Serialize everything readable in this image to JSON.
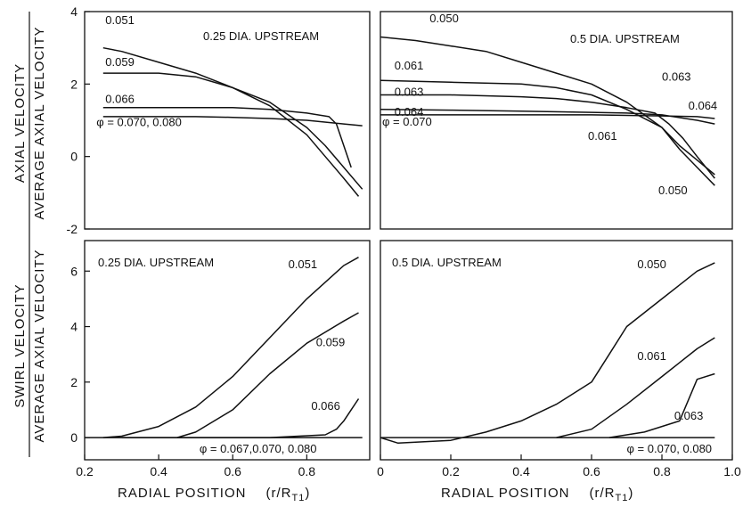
{
  "ylabel": {
    "numerator_top": "AXIAL  VELOCITY",
    "numerator_bottom": "SWIRL  VELOCITY",
    "denominator": "AVERAGE  AXIAL  VELOCITY"
  },
  "xlabel": {
    "text": "RADIAL    POSITION",
    "var": "(r/R",
    "sub": "T1",
    "close": ")"
  },
  "chart_data": [
    {
      "id": "axial-025",
      "type": "line",
      "title": "0.25 DIA. UPSTREAM",
      "xlim": [
        0.2,
        0.97
      ],
      "ylim": [
        -2,
        4
      ],
      "xticks": [],
      "yticks": [
        -2,
        0,
        2,
        4
      ],
      "phi_label": "φ = 0.070, 0.080",
      "series": [
        {
          "name": "0.051",
          "x": [
            0.25,
            0.3,
            0.4,
            0.5,
            0.6,
            0.7,
            0.8,
            0.85,
            0.9,
            0.94
          ],
          "y": [
            3.0,
            2.9,
            2.6,
            2.3,
            1.9,
            1.4,
            0.6,
            0.0,
            -0.6,
            -1.1
          ]
        },
        {
          "name": "0.059",
          "x": [
            0.25,
            0.3,
            0.4,
            0.5,
            0.6,
            0.7,
            0.8,
            0.85,
            0.9,
            0.95
          ],
          "y": [
            2.3,
            2.3,
            2.3,
            2.2,
            1.9,
            1.5,
            0.8,
            0.3,
            -0.3,
            -0.9
          ]
        },
        {
          "name": "0.066",
          "x": [
            0.25,
            0.4,
            0.5,
            0.6,
            0.7,
            0.8,
            0.86,
            0.88,
            0.9,
            0.92
          ],
          "y": [
            1.35,
            1.35,
            1.35,
            1.35,
            1.3,
            1.2,
            1.1,
            0.9,
            0.3,
            -0.3
          ]
        },
        {
          "name": "",
          "x": [
            0.25,
            0.4,
            0.5,
            0.6,
            0.7,
            0.8,
            0.9,
            0.95
          ],
          "y": [
            1.1,
            1.1,
            1.1,
            1.08,
            1.05,
            1.0,
            0.9,
            0.85
          ]
        }
      ],
      "labels": [
        {
          "text": "0.051",
          "x": 0.256,
          "y": 3.66
        },
        {
          "text": "0.059",
          "x": 0.256,
          "y": 2.5
        },
        {
          "text": "0.066",
          "x": 0.256,
          "y": 1.48
        },
        {
          "text": "φ = 0.070, 0.080",
          "x": 0.232,
          "y": 0.84
        }
      ]
    },
    {
      "id": "axial-05",
      "type": "line",
      "title": "0.5 DIA. UPSTREAM",
      "xlim": [
        0,
        1.0
      ],
      "ylim": [
        -2,
        4
      ],
      "xticks": [],
      "yticks": [],
      "phi_label": "φ = 0.070",
      "series": [
        {
          "name": "0.050",
          "x": [
            0,
            0.1,
            0.2,
            0.3,
            0.4,
            0.5,
            0.6,
            0.7,
            0.8,
            0.85,
            0.9,
            0.95
          ],
          "y": [
            3.3,
            3.2,
            3.05,
            2.9,
            2.6,
            2.3,
            2.0,
            1.5,
            0.8,
            0.2,
            -0.3,
            -0.8
          ]
        },
        {
          "name": "0.061",
          "x": [
            0,
            0.2,
            0.4,
            0.5,
            0.6,
            0.7,
            0.8,
            0.85,
            0.9,
            0.95
          ],
          "y": [
            2.1,
            2.05,
            2.0,
            1.9,
            1.7,
            1.3,
            0.8,
            0.3,
            -0.1,
            -0.5
          ]
        },
        {
          "name": "0.063",
          "x": [
            0,
            0.2,
            0.4,
            0.5,
            0.6,
            0.7,
            0.78,
            0.82,
            0.86,
            0.9,
            0.95
          ],
          "y": [
            1.7,
            1.7,
            1.65,
            1.6,
            1.5,
            1.35,
            1.2,
            0.9,
            0.5,
            0.0,
            -0.6
          ]
        },
        {
          "name": "0.064",
          "x": [
            0,
            0.2,
            0.4,
            0.6,
            0.7,
            0.8,
            0.9,
            0.95
          ],
          "y": [
            1.3,
            1.28,
            1.25,
            1.22,
            1.2,
            1.15,
            1.0,
            0.9
          ]
        },
        {
          "name": "",
          "x": [
            0,
            0.2,
            0.4,
            0.6,
            0.8,
            0.9,
            0.95
          ],
          "y": [
            1.15,
            1.15,
            1.15,
            1.15,
            1.12,
            1.1,
            1.05
          ]
        }
      ],
      "labels": [
        {
          "text": "0.050",
          "x": 0.14,
          "y": 3.7
        },
        {
          "text": "0.061",
          "x": 0.04,
          "y": 2.4
        },
        {
          "text": "0.063",
          "x": 0.04,
          "y": 1.68
        },
        {
          "text": "0.064",
          "x": 0.04,
          "y": 1.12
        },
        {
          "text": "φ = 0.070",
          "x": 0.005,
          "y": 0.85
        },
        {
          "text": "0.063",
          "x": 0.8,
          "y": 2.1
        },
        {
          "text": "0.064",
          "x": 0.875,
          "y": 1.3
        },
        {
          "text": "0.061",
          "x": 0.59,
          "y": 0.46
        },
        {
          "text": "0.050",
          "x": 0.79,
          "y": -1.04
        }
      ]
    },
    {
      "id": "swirl-025",
      "type": "line",
      "title": "0.25 DIA. UPSTREAM",
      "xlim": [
        0.2,
        0.97
      ],
      "ylim": [
        -0.8,
        7.1
      ],
      "xticks": [
        0.2,
        0.4,
        0.6,
        0.8
      ],
      "yticks": [
        0,
        2,
        4,
        6
      ],
      "phi_label": "φ = 0.067,0.070, 0.080",
      "series": [
        {
          "name": "0.051",
          "x": [
            0.25,
            0.3,
            0.4,
            0.5,
            0.6,
            0.7,
            0.8,
            0.9,
            0.94
          ],
          "y": [
            0.0,
            0.05,
            0.4,
            1.1,
            2.2,
            3.6,
            5.0,
            6.2,
            6.5
          ]
        },
        {
          "name": "0.059",
          "x": [
            0.45,
            0.5,
            0.6,
            0.7,
            0.8,
            0.9,
            0.94
          ],
          "y": [
            0.0,
            0.2,
            1.0,
            2.3,
            3.4,
            4.2,
            4.5
          ]
        },
        {
          "name": "0.066",
          "x": [
            0.3,
            0.5,
            0.7,
            0.85,
            0.88,
            0.9,
            0.92,
            0.94
          ],
          "y": [
            0.0,
            0.0,
            0.0,
            0.1,
            0.3,
            0.6,
            1.0,
            1.4
          ]
        },
        {
          "name": "",
          "x": [
            0.2,
            0.4,
            0.6,
            0.8,
            0.95
          ],
          "y": [
            0.0,
            0.0,
            0.0,
            0.0,
            0.0
          ]
        }
      ],
      "labels": [
        {
          "text": "0.051",
          "x": 0.75,
          "y": 6.1
        },
        {
          "text": "0.059",
          "x": 0.825,
          "y": 3.3
        },
        {
          "text": "0.066",
          "x": 0.812,
          "y": 1.0
        },
        {
          "text": "φ = 0.067,0.070, 0.080",
          "x": 0.51,
          "y": -0.55
        }
      ]
    },
    {
      "id": "swirl-05",
      "type": "line",
      "title": "0.5 DIA. UPSTREAM",
      "xlim": [
        0,
        1.0
      ],
      "ylim": [
        -0.8,
        7.1
      ],
      "xticks": [
        0,
        0.2,
        0.4,
        0.6,
        0.8,
        1.0
      ],
      "yticks": [],
      "phi_label": "φ = 0.070, 0.080",
      "series": [
        {
          "name": "0.050",
          "x": [
            0,
            0.05,
            0.2,
            0.3,
            0.4,
            0.5,
            0.6,
            0.65,
            0.7,
            0.8,
            0.9,
            0.95
          ],
          "y": [
            0.0,
            -0.2,
            -0.1,
            0.2,
            0.6,
            1.2,
            2.0,
            3.0,
            4.0,
            5.0,
            6.0,
            6.3
          ]
        },
        {
          "name": "0.061",
          "x": [
            0.5,
            0.6,
            0.7,
            0.8,
            0.9,
            0.95
          ],
          "y": [
            0.0,
            0.3,
            1.2,
            2.2,
            3.2,
            3.6
          ]
        },
        {
          "name": "0.063",
          "x": [
            0.65,
            0.75,
            0.85,
            0.9,
            0.95
          ],
          "y": [
            0.0,
            0.2,
            0.6,
            2.1,
            2.3
          ]
        },
        {
          "name": "",
          "x": [
            0,
            0.2,
            0.4,
            0.6,
            0.8,
            0.95
          ],
          "y": [
            0.0,
            0.0,
            0.0,
            0.0,
            0.0,
            0.0
          ]
        }
      ],
      "labels": [
        {
          "text": "0.050",
          "x": 0.73,
          "y": 6.1
        },
        {
          "text": "0.061",
          "x": 0.73,
          "y": 2.8
        },
        {
          "text": "0.063",
          "x": 0.835,
          "y": 0.65
        },
        {
          "text": "φ = 0.070, 0.080",
          "x": 0.7,
          "y": -0.55
        }
      ]
    }
  ]
}
